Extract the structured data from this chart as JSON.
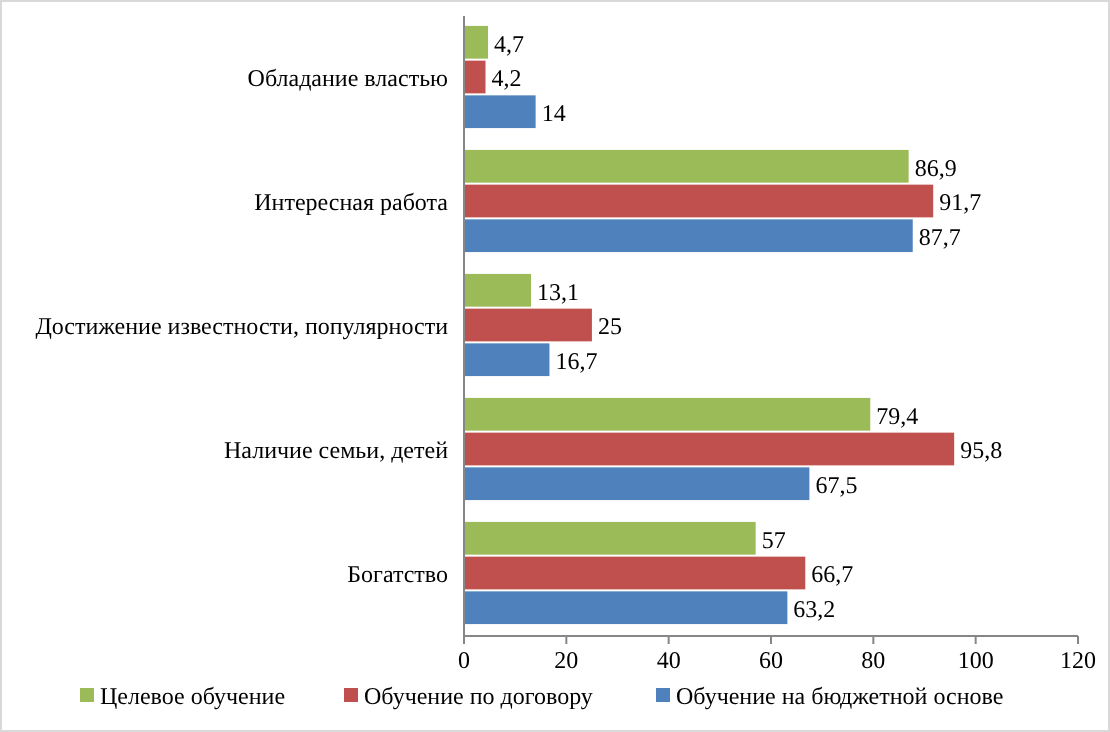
{
  "chart_data": {
    "type": "bar",
    "orientation": "horizontal",
    "categories": [
      "Обладание властью",
      "Интересная работа",
      "Достижение известности, популярности",
      "Наличие семьи, детей",
      "Богатство"
    ],
    "series": [
      {
        "name": "Целевое обучение",
        "color": "#9bbb59",
        "values": [
          4.7,
          86.9,
          13.1,
          79.4,
          57
        ],
        "value_labels": [
          "4,7",
          "86,9",
          "13,1",
          "79,4",
          "57"
        ]
      },
      {
        "name": "Обучение по договору",
        "color": "#c0504d",
        "values": [
          4.2,
          91.7,
          25,
          95.8,
          66.7
        ],
        "value_labels": [
          "4,2",
          "91,7",
          "25",
          "95,8",
          "66,7"
        ]
      },
      {
        "name": "Обучение на бюджетной основе",
        "color": "#4f81bd",
        "values": [
          14,
          87.7,
          16.7,
          67.5,
          63.2
        ],
        "value_labels": [
          "14",
          "87,7",
          "16,7",
          "67,5",
          "63,2"
        ]
      }
    ],
    "xlim": [
      0,
      120
    ],
    "xticks": [
      0,
      20,
      40,
      60,
      80,
      100,
      120
    ],
    "grid": false,
    "legend": "bottom"
  }
}
